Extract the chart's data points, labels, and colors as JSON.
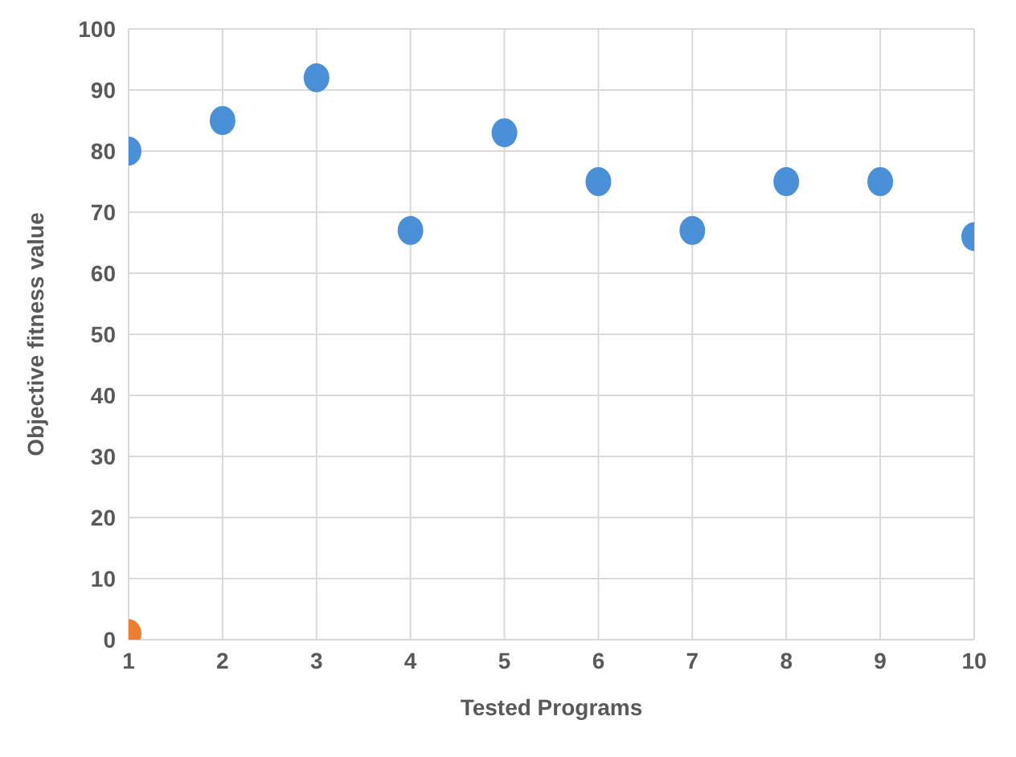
{
  "chart_data": {
    "type": "scatter",
    "xlabel": "Tested Programs",
    "ylabel": "Objective fitness value",
    "xlim": [
      1,
      10
    ],
    "xticks": [
      1,
      2,
      3,
      4,
      5,
      6,
      7,
      8,
      9,
      10
    ],
    "ylim": [
      0,
      100
    ],
    "yticks": [
      0,
      10,
      20,
      30,
      40,
      50,
      60,
      70,
      80,
      90,
      100
    ],
    "grid": true,
    "marker": "circle",
    "series": [
      {
        "color": "#4a90d9",
        "x": [
          1,
          2,
          3,
          4,
          5,
          6,
          7,
          8,
          9,
          10
        ],
        "values": [
          80,
          85,
          92,
          67,
          83,
          75,
          67,
          75,
          75,
          66
        ]
      },
      {
        "color": "#ed7d31",
        "x": [
          1
        ],
        "values": [
          1
        ]
      }
    ]
  }
}
